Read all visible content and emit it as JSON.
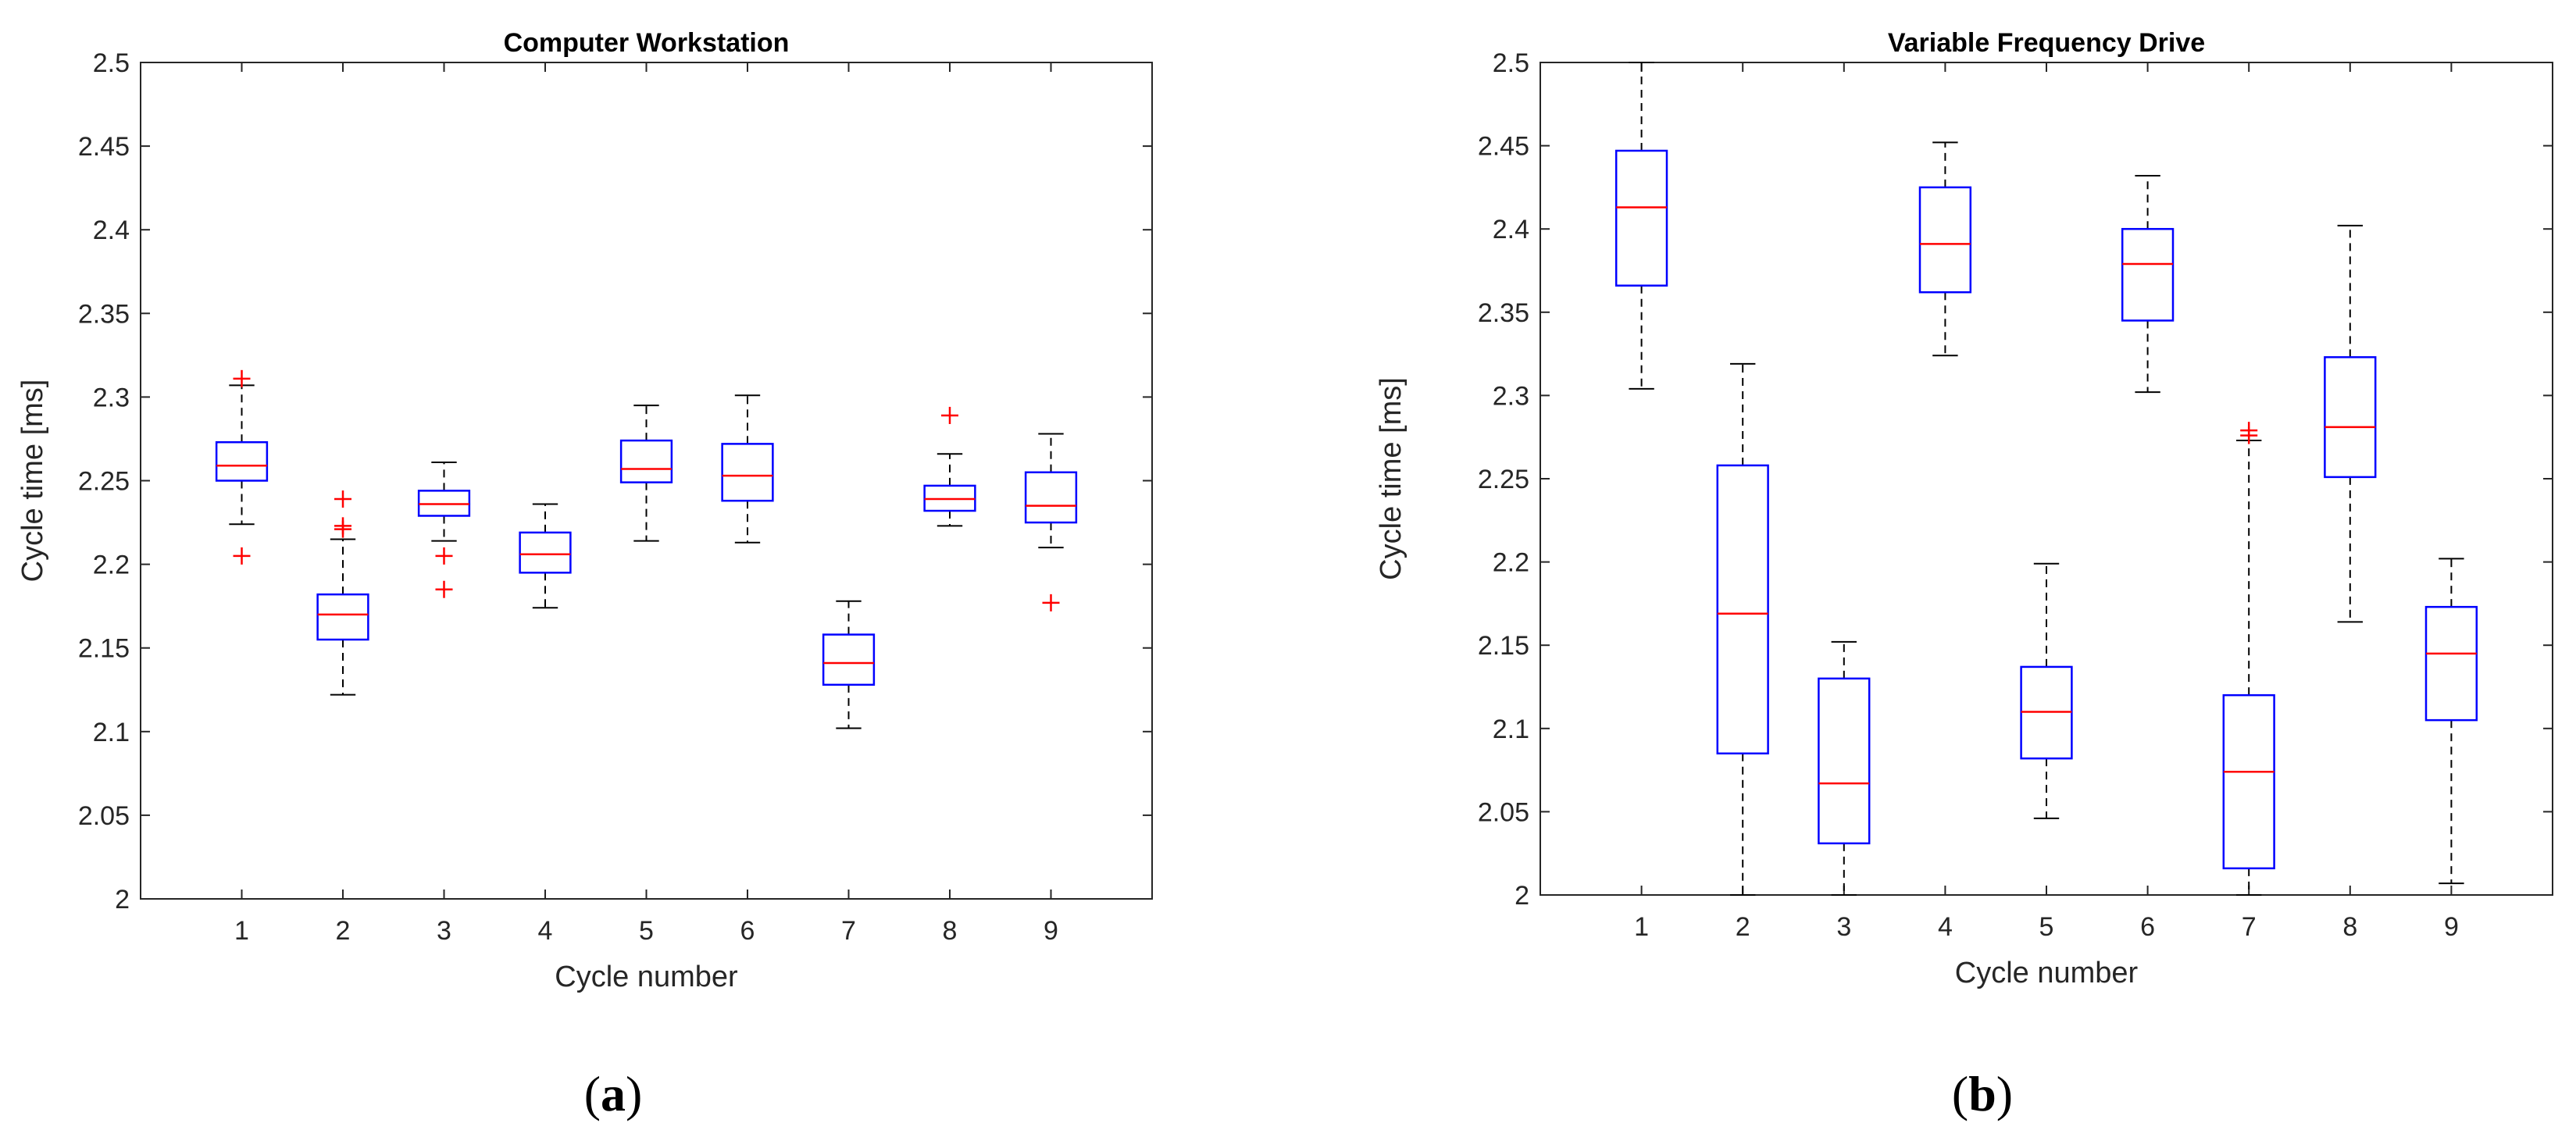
{
  "chart_data": [
    {
      "type": "boxplot",
      "title": "Computer Workstation",
      "xlabel": "Cycle number",
      "ylabel": "Cycle time [ms]",
      "subfigure": "a",
      "ylim": [
        2,
        2.5
      ],
      "yticks": [
        "2",
        "2.05",
        "2.1",
        "2.15",
        "2.2",
        "2.25",
        "2.3",
        "2.35",
        "2.4",
        "2.45",
        "2.5"
      ],
      "categories": [
        "1",
        "2",
        "3",
        "4",
        "5",
        "6",
        "7",
        "8",
        "9"
      ],
      "boxes": [
        {
          "whisker_low": 2.224,
          "q1": 2.25,
          "median": 2.259,
          "q3": 2.273,
          "whisker_high": 2.307,
          "outliers": [
            2.205,
            2.311
          ]
        },
        {
          "whisker_low": 2.122,
          "q1": 2.155,
          "median": 2.17,
          "q3": 2.182,
          "whisker_high": 2.215,
          "outliers": [
            2.221,
            2.223,
            2.239
          ]
        },
        {
          "whisker_low": 2.214,
          "q1": 2.229,
          "median": 2.236,
          "q3": 2.244,
          "whisker_high": 2.261,
          "outliers": [
            2.185,
            2.205
          ]
        },
        {
          "whisker_low": 2.174,
          "q1": 2.195,
          "median": 2.206,
          "q3": 2.219,
          "whisker_high": 2.236,
          "outliers": []
        },
        {
          "whisker_low": 2.214,
          "q1": 2.249,
          "median": 2.257,
          "q3": 2.274,
          "whisker_high": 2.295,
          "outliers": []
        },
        {
          "whisker_low": 2.213,
          "q1": 2.238,
          "median": 2.253,
          "q3": 2.272,
          "whisker_high": 2.301,
          "outliers": []
        },
        {
          "whisker_low": 2.102,
          "q1": 2.128,
          "median": 2.141,
          "q3": 2.158,
          "whisker_high": 2.178,
          "outliers": []
        },
        {
          "whisker_low": 2.223,
          "q1": 2.232,
          "median": 2.239,
          "q3": 2.247,
          "whisker_high": 2.266,
          "outliers": [
            2.289
          ]
        },
        {
          "whisker_low": 2.21,
          "q1": 2.225,
          "median": 2.235,
          "q3": 2.255,
          "whisker_high": 2.278,
          "outliers": [
            2.177
          ]
        }
      ]
    },
    {
      "type": "boxplot",
      "title": "Variable Frequency Drive",
      "xlabel": "Cycle number",
      "ylabel": "Cycle time [ms]",
      "subfigure": "b",
      "ylim": [
        2,
        2.5
      ],
      "yticks": [
        "2",
        "2.05",
        "2.1",
        "2.15",
        "2.2",
        "2.25",
        "2.3",
        "2.35",
        "2.4",
        "2.45",
        "2.5"
      ],
      "categories": [
        "1",
        "2",
        "3",
        "4",
        "5",
        "6",
        "7",
        "8",
        "9"
      ],
      "boxes": [
        {
          "whisker_low": 2.304,
          "q1": 2.366,
          "median": 2.413,
          "q3": 2.447,
          "whisker_high": 2.5,
          "outliers": []
        },
        {
          "whisker_low": 2.0,
          "q1": 2.085,
          "median": 2.169,
          "q3": 2.258,
          "whisker_high": 2.319,
          "outliers": []
        },
        {
          "whisker_low": 2.0,
          "q1": 2.031,
          "median": 2.067,
          "q3": 2.13,
          "whisker_high": 2.152,
          "outliers": []
        },
        {
          "whisker_low": 2.324,
          "q1": 2.362,
          "median": 2.391,
          "q3": 2.425,
          "whisker_high": 2.452,
          "outliers": []
        },
        {
          "whisker_low": 2.046,
          "q1": 2.082,
          "median": 2.11,
          "q3": 2.137,
          "whisker_high": 2.199,
          "outliers": []
        },
        {
          "whisker_low": 2.302,
          "q1": 2.345,
          "median": 2.379,
          "q3": 2.4,
          "whisker_high": 2.432,
          "outliers": []
        },
        {
          "whisker_low": 2.0,
          "q1": 2.016,
          "median": 2.074,
          "q3": 2.12,
          "whisker_high": 2.273,
          "outliers": [
            2.276,
            2.279
          ]
        },
        {
          "whisker_low": 2.164,
          "q1": 2.251,
          "median": 2.281,
          "q3": 2.323,
          "whisker_high": 2.402,
          "outliers": []
        },
        {
          "whisker_low": 2.007,
          "q1": 2.105,
          "median": 2.145,
          "q3": 2.173,
          "whisker_high": 2.202,
          "outliers": []
        }
      ]
    }
  ],
  "colors": {
    "box": "#0000ff",
    "median": "#ff0000",
    "outlier": "#ff0000",
    "whisker": "#000000",
    "axis": "#262626"
  }
}
